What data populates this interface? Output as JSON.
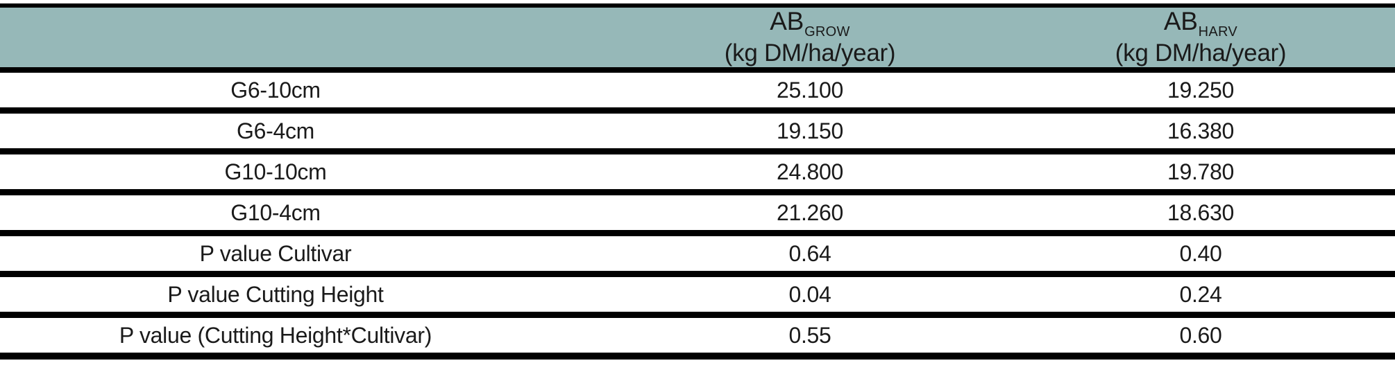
{
  "table": {
    "header": {
      "empty": "",
      "ab_grow": {
        "symbol": "AB",
        "subscript": "GROW",
        "unit": "(kg DM/ha/year)"
      },
      "ab_harv": {
        "symbol": "AB",
        "subscript": "HARV",
        "unit": "(kg DM/ha/year)"
      }
    },
    "rows": [
      {
        "label": "G6-10cm",
        "ab_grow": "25.100",
        "ab_harv": "19.250"
      },
      {
        "label": "G6-4cm",
        "ab_grow": "19.150",
        "ab_harv": "16.380"
      },
      {
        "label": "G10-10cm",
        "ab_grow": "24.800",
        "ab_harv": "19.780"
      },
      {
        "label": "G10-4cm",
        "ab_grow": "21.260",
        "ab_harv": "18.630"
      },
      {
        "label": "P value Cultivar",
        "ab_grow": "0.64",
        "ab_harv": "0.40"
      },
      {
        "label": "P value Cutting Height",
        "ab_grow": "0.04",
        "ab_harv": "0.24"
      },
      {
        "label": "P value (Cutting Height*Cultivar)",
        "ab_grow": "0.55",
        "ab_harv": "0.60"
      }
    ],
    "colors": {
      "header_bg": "#96b8b8",
      "border": "#000000",
      "text": "#1a1a1a"
    }
  },
  "chart_data": {
    "type": "table",
    "title": "",
    "columns": [
      "",
      "AB GROW (kg DM/ha/year)",
      "AB HARV (kg DM/ha/year)"
    ],
    "rows": [
      [
        "G6-10cm",
        "25.100",
        "19.250"
      ],
      [
        "G6-4cm",
        "19.150",
        "16.380"
      ],
      [
        "G10-10cm",
        "24.800",
        "19.780"
      ],
      [
        "G10-4cm",
        "21.260",
        "18.630"
      ],
      [
        "P value Cultivar",
        "0.64",
        "0.40"
      ],
      [
        "P value Cutting Height",
        "0.04",
        "0.24"
      ],
      [
        "P value (Cutting Height*Cultivar)",
        "0.55",
        "0.60"
      ]
    ]
  }
}
